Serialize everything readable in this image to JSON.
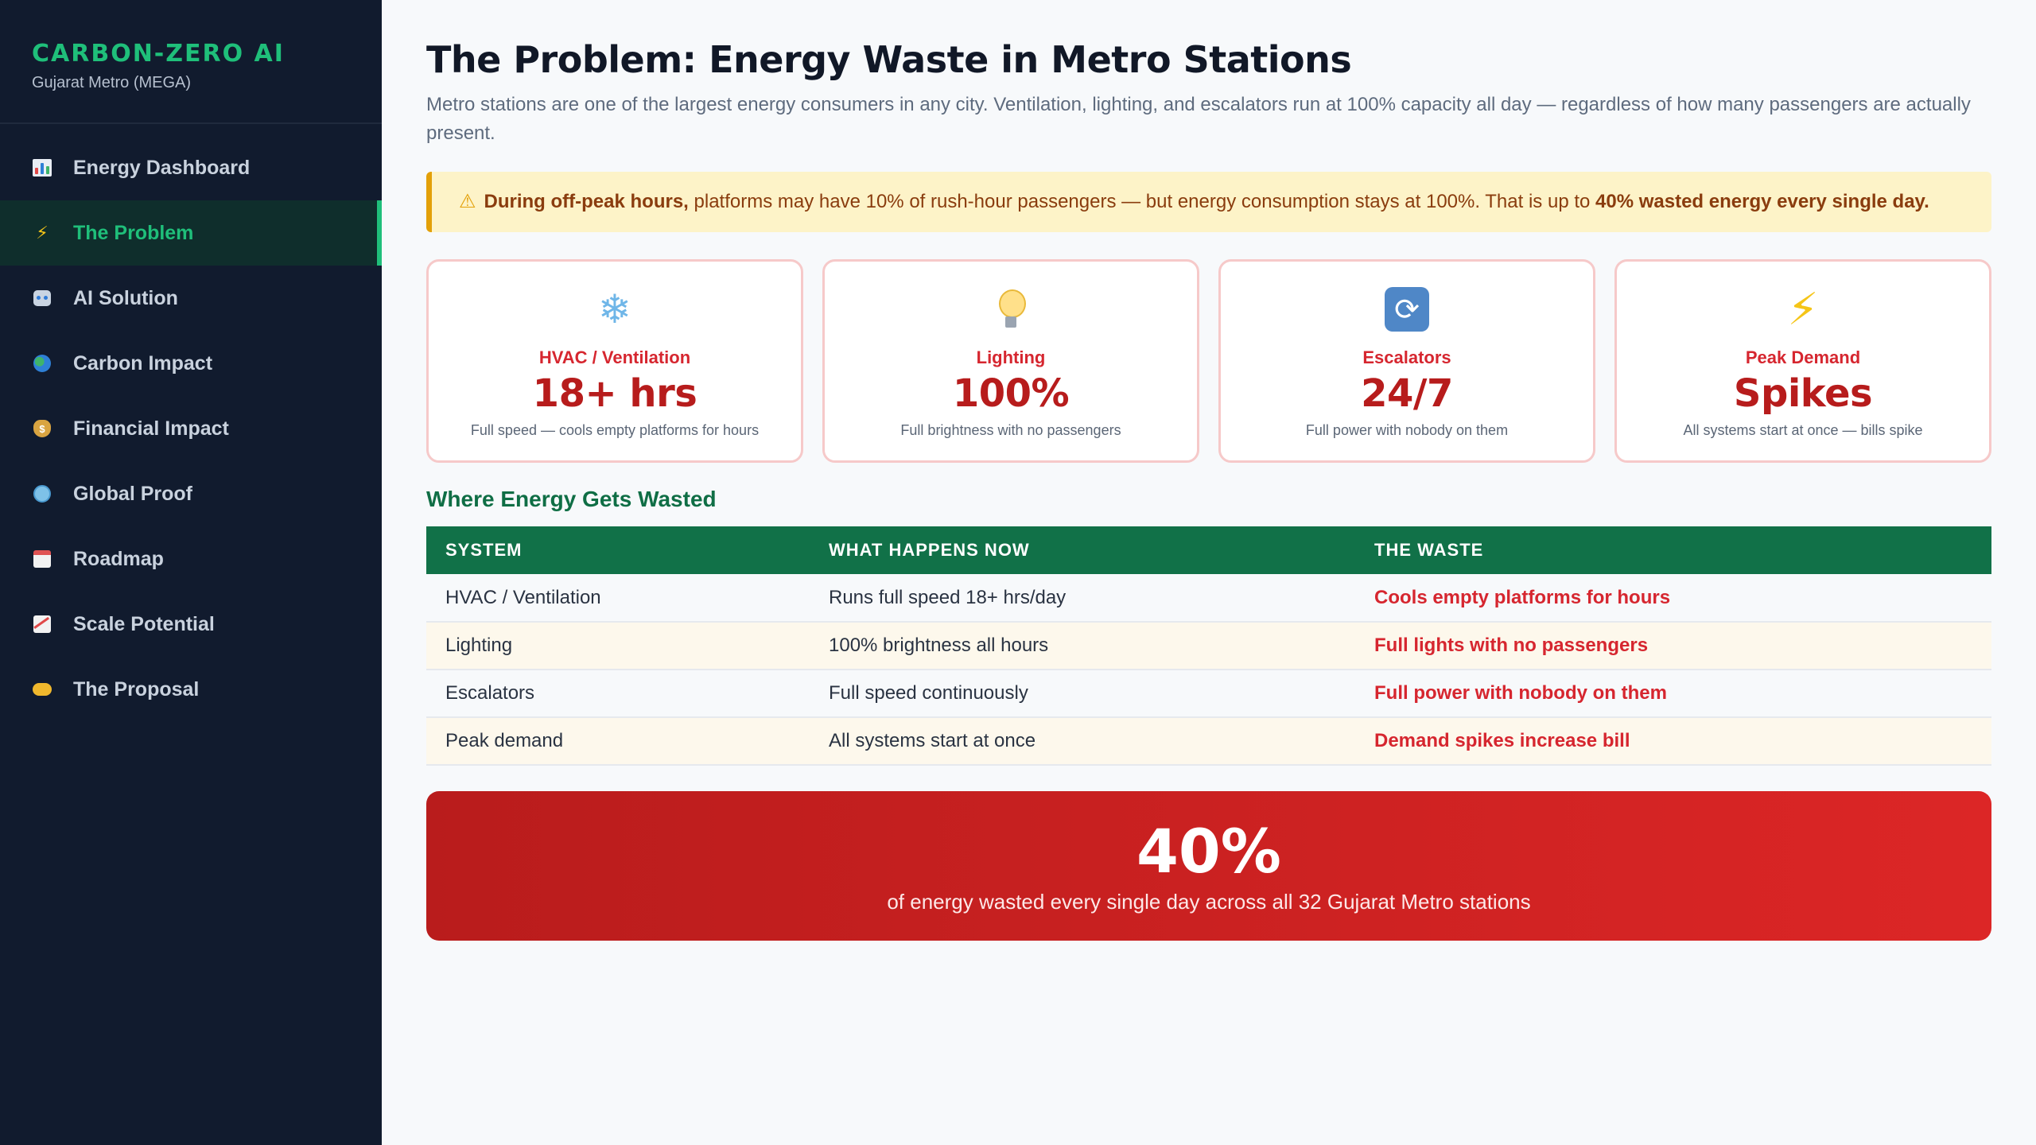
{
  "sidebar": {
    "brand_title": "CARBON-ZERO AI",
    "brand_subtitle": "Gujarat Metro (MEGA)",
    "items": [
      {
        "label": "Energy Dashboard",
        "icon": "bar-chart-icon"
      },
      {
        "label": "The Problem",
        "icon": "lightning-icon",
        "active": true
      },
      {
        "label": "AI Solution",
        "icon": "robot-icon"
      },
      {
        "label": "Carbon Impact",
        "icon": "globe-icon"
      },
      {
        "label": "Financial Impact",
        "icon": "money-bag-icon"
      },
      {
        "label": "Global Proof",
        "icon": "globe-meridians-icon"
      },
      {
        "label": "Roadmap",
        "icon": "calendar-icon"
      },
      {
        "label": "Scale Potential",
        "icon": "trending-up-icon"
      },
      {
        "label": "The Proposal",
        "icon": "handshake-icon"
      }
    ]
  },
  "main": {
    "title": "The Problem: Energy Waste in Metro Stations",
    "intro": "Metro stations are one of the largest energy consumers in any city. Ventilation, lighting, and escalators run at 100% capacity all day — regardless of how many passengers are actually present.",
    "alert": {
      "icon": "warning-icon",
      "lead": "During off-peak hours,",
      "body": " platforms may have 10% of rush-hour passengers — but energy consumption stays at 100%. That is up to ",
      "emphasis": "40% wasted energy every single day."
    },
    "cards": [
      {
        "icon": "snowflake-icon",
        "label": "HVAC / Ventilation",
        "value": "18+ hrs",
        "desc": "Full speed — cools empty platforms for hours"
      },
      {
        "icon": "light-bulb-icon",
        "label": "Lighting",
        "value": "100%",
        "desc": "Full brightness with no passengers"
      },
      {
        "icon": "cycle-arrows-icon",
        "label": "Escalators",
        "value": "24/7",
        "desc": "Full power with nobody on them"
      },
      {
        "icon": "lightning-icon",
        "label": "Peak Demand",
        "value": "Spikes",
        "desc": "All systems start at once — bills spike"
      }
    ],
    "section_title": "Where Energy Gets Wasted",
    "table": {
      "headers": [
        "SYSTEM",
        "WHAT HAPPENS NOW",
        "THE WASTE"
      ],
      "rows": [
        [
          "HVAC / Ventilation",
          "Runs full speed 18+ hrs/day",
          "Cools empty platforms for hours"
        ],
        [
          "Lighting",
          "100% brightness all hours",
          "Full lights with no passengers"
        ],
        [
          "Escalators",
          "Full speed continuously",
          "Full power with nobody on them"
        ],
        [
          "Peak demand",
          "All systems start at once",
          "Demand spikes increase bill"
        ]
      ]
    },
    "banner": {
      "value": "40%",
      "text": "of energy wasted every single day across all 32 Gujarat Metro stations"
    }
  },
  "colors": {
    "brand_green": "#1fbf7a",
    "sidebar_bg": "#111b2e",
    "table_header": "#117148",
    "waste_red": "#d6262f",
    "banner_red": "#dc2626",
    "alert_bg": "#fdf3c8"
  }
}
